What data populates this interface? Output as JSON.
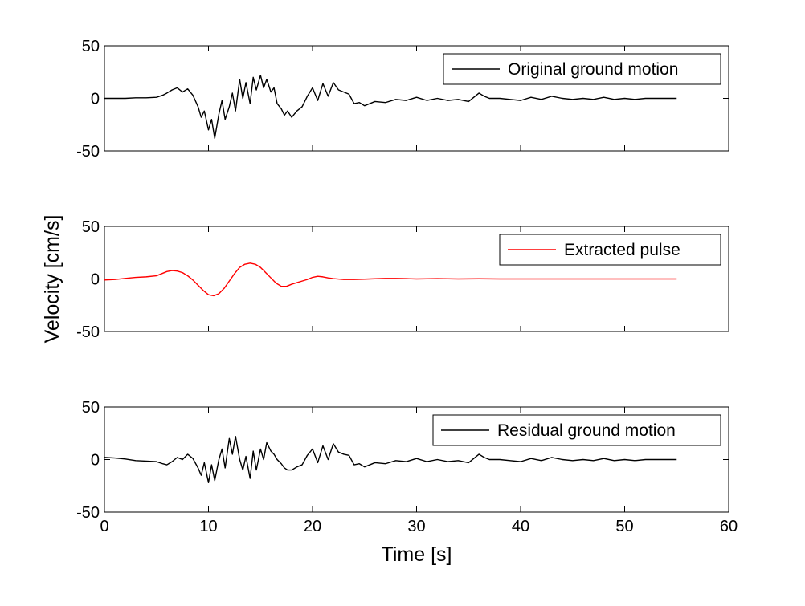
{
  "chart_data": [
    {
      "type": "line",
      "title": "",
      "xlabel": "",
      "ylabel": "",
      "xlim": [
        0,
        60
      ],
      "ylim": [
        -50,
        50
      ],
      "xticks": [
        0,
        10,
        20,
        30,
        40,
        50,
        60
      ],
      "yticks": [
        -50,
        0,
        50
      ],
      "yticklabels": [
        "-50",
        "0",
        "50"
      ],
      "show_xticklabels": false,
      "grid": false,
      "legend_position": "top-right",
      "series": [
        {
          "name": "Original ground motion",
          "color": "#000000",
          "x": [
            0,
            1,
            2,
            3,
            4,
            5,
            5.6,
            6,
            6.5,
            7,
            7.5,
            8,
            8.5,
            9,
            9.3,
            9.6,
            10,
            10.3,
            10.6,
            11,
            11.3,
            11.6,
            12,
            12.3,
            12.6,
            13,
            13.3,
            13.6,
            14,
            14.3,
            14.6,
            15,
            15.3,
            15.6,
            16,
            16.3,
            16.6,
            17,
            17.3,
            17.6,
            18,
            18.5,
            19,
            19.5,
            20,
            20.5,
            21,
            21.5,
            22,
            22.5,
            23,
            23.5,
            24,
            24.5,
            25,
            26,
            27,
            28,
            29,
            30,
            31,
            32,
            33,
            34,
            35,
            36,
            36.5,
            37,
            38,
            39,
            40,
            41,
            42,
            43,
            44,
            45,
            46,
            47,
            48,
            49,
            50,
            51,
            52,
            53,
            54,
            55
          ],
          "y": [
            0,
            0,
            0,
            0.5,
            0.5,
            1,
            3,
            5,
            8,
            10,
            6,
            9,
            3,
            -8,
            -18,
            -12,
            -30,
            -20,
            -38,
            -15,
            -2,
            -20,
            -8,
            5,
            -12,
            18,
            0,
            15,
            -5,
            20,
            8,
            22,
            10,
            18,
            6,
            10,
            -5,
            -10,
            -16,
            -12,
            -18,
            -12,
            -8,
            2,
            10,
            -2,
            14,
            2,
            15,
            8,
            6,
            4,
            -5,
            -4,
            -7,
            -3,
            -4,
            -1,
            -2,
            1,
            -2,
            0,
            -2,
            -1,
            -3,
            5,
            2,
            0,
            0,
            -1,
            -2,
            1,
            -1,
            2,
            0,
            -1,
            0,
            -1,
            1,
            -1,
            0,
            -1,
            0,
            0,
            0,
            0
          ]
        }
      ]
    },
    {
      "type": "line",
      "title": "",
      "xlabel": "",
      "ylabel": "Velocity [cm/s]",
      "xlim": [
        0,
        60
      ],
      "ylim": [
        -50,
        50
      ],
      "xticks": [
        0,
        10,
        20,
        30,
        40,
        50,
        60
      ],
      "yticks": [
        -50,
        0,
        50
      ],
      "yticklabels": [
        "-50",
        "0",
        "50"
      ],
      "show_xticklabels": false,
      "grid": false,
      "legend_position": "top-right",
      "series": [
        {
          "name": "Extracted pulse",
          "color": "#ff0000",
          "x": [
            0,
            1,
            2,
            3,
            4,
            5,
            5.5,
            6,
            6.5,
            7,
            7.5,
            8,
            8.5,
            9,
            9.5,
            10,
            10.5,
            11,
            11.5,
            12,
            12.5,
            13,
            13.5,
            14,
            14.5,
            15,
            15.5,
            16,
            16.5,
            17,
            17.5,
            18,
            18.5,
            19,
            19.5,
            20,
            20.5,
            21,
            21.5,
            22,
            23,
            24,
            25,
            26,
            27,
            28,
            29,
            30,
            32,
            34,
            36,
            38,
            40,
            45,
            50,
            55
          ],
          "y": [
            -1,
            -0.5,
            0.5,
            1.5,
            2,
            3,
            5,
            7,
            8,
            7.5,
            6,
            3,
            -1,
            -6,
            -11,
            -15,
            -16,
            -14,
            -9,
            -2,
            5,
            11,
            14,
            15,
            14,
            11,
            6,
            1,
            -4,
            -7,
            -7,
            -5,
            -3.5,
            -2,
            -0.5,
            1.5,
            2.5,
            2,
            1,
            0.3,
            -0.5,
            -0.5,
            -0.2,
            0.2,
            0.5,
            0.5,
            0.3,
            0,
            0.3,
            0,
            0.2,
            0,
            0,
            0,
            0,
            0
          ]
        }
      ]
    },
    {
      "type": "line",
      "title": "",
      "xlabel": "Time [s]",
      "ylabel": "",
      "xlim": [
        0,
        60
      ],
      "ylim": [
        -50,
        50
      ],
      "xticks": [
        0,
        10,
        20,
        30,
        40,
        50,
        60
      ],
      "xticklabels": [
        "0",
        "10",
        "20",
        "30",
        "40",
        "50",
        "60"
      ],
      "yticks": [
        -50,
        0,
        50
      ],
      "yticklabels": [
        "-50",
        "0",
        "50"
      ],
      "show_xticklabels": true,
      "grid": false,
      "legend_position": "top-right",
      "series": [
        {
          "name": "Residual ground motion",
          "color": "#000000",
          "x": [
            0,
            1,
            2,
            3,
            4,
            5,
            5.6,
            6,
            6.5,
            7,
            7.5,
            8,
            8.5,
            9,
            9.3,
            9.6,
            10,
            10.3,
            10.6,
            11,
            11.3,
            11.6,
            12,
            12.3,
            12.6,
            13,
            13.3,
            13.6,
            14,
            14.3,
            14.6,
            15,
            15.3,
            15.6,
            16,
            16.3,
            16.6,
            17,
            17.3,
            17.6,
            18,
            18.5,
            19,
            19.5,
            20,
            20.5,
            21,
            21.5,
            22,
            22.5,
            23,
            23.5,
            24,
            24.5,
            25,
            26,
            27,
            28,
            29,
            30,
            31,
            32,
            33,
            34,
            35,
            36,
            36.5,
            37,
            38,
            39,
            40,
            41,
            42,
            43,
            44,
            45,
            46,
            47,
            48,
            49,
            50,
            51,
            52,
            53,
            54,
            55
          ],
          "y": [
            2,
            1.5,
            0.5,
            -1,
            -1.5,
            -2,
            -4,
            -5,
            -2,
            2,
            0,
            5,
            1,
            -8,
            -15,
            -3,
            -22,
            -5,
            -20,
            0,
            10,
            -8,
            20,
            5,
            22,
            0,
            -10,
            3,
            -18,
            8,
            -10,
            10,
            0,
            16,
            8,
            5,
            0,
            -4,
            -8,
            -10,
            -10,
            -7,
            -5,
            4,
            10,
            -3,
            13,
            0,
            15,
            7,
            5,
            4,
            -5,
            -4,
            -7,
            -3,
            -4,
            -1,
            -2,
            1,
            -2,
            0,
            -2,
            -1,
            -3,
            5,
            2,
            0,
            0,
            -1,
            -2,
            1,
            -1,
            2,
            0,
            -1,
            0,
            -1,
            1,
            -1,
            0,
            -1,
            0,
            0,
            0,
            0
          ]
        }
      ]
    }
  ]
}
